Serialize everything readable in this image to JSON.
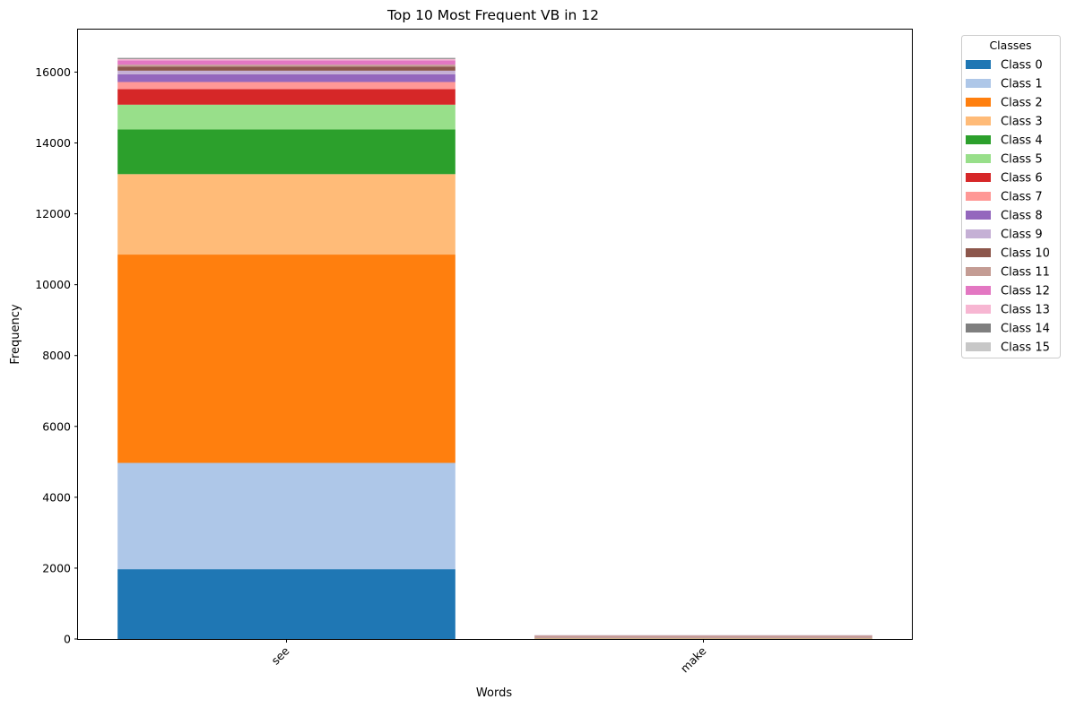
{
  "chart_data": {
    "type": "bar",
    "stacked": true,
    "title": "Top 10 Most Frequent VB in 12",
    "xlabel": "Words",
    "ylabel": "Frequency",
    "categories": [
      "see",
      "make"
    ],
    "ylim": [
      0,
      17200
    ],
    "yticks": [
      0,
      2000,
      4000,
      6000,
      8000,
      10000,
      12000,
      14000,
      16000
    ],
    "ytick_labels": [
      "0",
      "2000",
      "4000",
      "6000",
      "8000",
      "10000",
      "12000",
      "14000",
      "16000"
    ],
    "grid": false,
    "legend": {
      "title": "Classes",
      "placement": "outside-top-right"
    },
    "series": [
      {
        "name": "Class 0",
        "color": "#1f77b4",
        "values": [
          1970,
          4
        ]
      },
      {
        "name": "Class 1",
        "color": "#aec7e8",
        "values": [
          3000,
          3
        ]
      },
      {
        "name": "Class 2",
        "color": "#ff7f0e",
        "values": [
          5880,
          5
        ]
      },
      {
        "name": "Class 3",
        "color": "#ffbb78",
        "values": [
          2270,
          4
        ]
      },
      {
        "name": "Class 4",
        "color": "#2ca02c",
        "values": [
          1260,
          3
        ]
      },
      {
        "name": "Class 5",
        "color": "#98df8a",
        "values": [
          700,
          3
        ]
      },
      {
        "name": "Class 6",
        "color": "#d62728",
        "values": [
          440,
          3
        ]
      },
      {
        "name": "Class 7",
        "color": "#ff9896",
        "values": [
          200,
          3
        ]
      },
      {
        "name": "Class 8",
        "color": "#9467bd",
        "values": [
          220,
          3
        ]
      },
      {
        "name": "Class 9",
        "color": "#c5b0d5",
        "values": [
          100,
          3
        ]
      },
      {
        "name": "Class 10",
        "color": "#8c564b",
        "values": [
          110,
          4
        ]
      },
      {
        "name": "Class 11",
        "color": "#c49c94",
        "values": [
          60,
          60
        ]
      },
      {
        "name": "Class 12",
        "color": "#e377c2",
        "values": [
          120,
          3
        ]
      },
      {
        "name": "Class 13",
        "color": "#f7b6d2",
        "values": [
          40,
          3
        ]
      },
      {
        "name": "Class 14",
        "color": "#7f7f7f",
        "values": [
          20,
          3
        ]
      },
      {
        "name": "Class 15",
        "color": "#c7c7c7",
        "values": [
          20,
          3
        ]
      }
    ]
  }
}
